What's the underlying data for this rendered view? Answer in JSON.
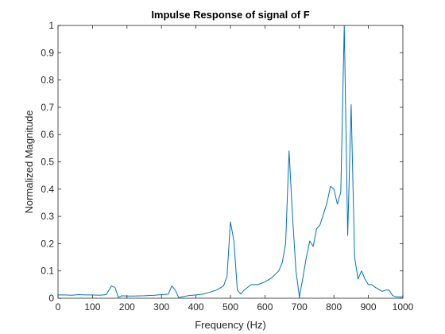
{
  "chart_data": {
    "type": "line",
    "title": "Impulse Response of signal of F",
    "xlabel": "Frequency (Hz)",
    "ylabel": "Normalized Magnitude",
    "xlim": [
      0,
      1000
    ],
    "ylim": [
      0,
      1
    ],
    "xticks": [
      "0",
      "100",
      "200",
      "300",
      "400",
      "500",
      "600",
      "700",
      "800",
      "900",
      "1000"
    ],
    "yticks": [
      "0",
      "0.1",
      "0.2",
      "0.3",
      "0.4",
      "0.5",
      "0.6",
      "0.7",
      "0.8",
      "0.9",
      "1"
    ],
    "grid": false,
    "series": [
      {
        "color": "#0072bd",
        "x": [
          0,
          20,
          40,
          60,
          80,
          100,
          120,
          140,
          155,
          165,
          175,
          185,
          200,
          220,
          250,
          280,
          300,
          320,
          330,
          340,
          350,
          360,
          380,
          400,
          420,
          440,
          460,
          480,
          490,
          500,
          510,
          520,
          530,
          540,
          560,
          580,
          600,
          620,
          640,
          650,
          660,
          670,
          680,
          690,
          700,
          710,
          720,
          730,
          740,
          750,
          760,
          770,
          780,
          790,
          800,
          810,
          820,
          830,
          840,
          850,
          860,
          870,
          880,
          890,
          900,
          910,
          920,
          940,
          950,
          960,
          970,
          980,
          990,
          1000
        ],
        "values": [
          0.012,
          0.012,
          0.011,
          0.013,
          0.012,
          0.012,
          0.011,
          0.013,
          0.045,
          0.04,
          0.003,
          0.009,
          0.008,
          0.008,
          0.009,
          0.011,
          0.013,
          0.015,
          0.045,
          0.03,
          0.002,
          0.005,
          0.01,
          0.012,
          0.015,
          0.022,
          0.03,
          0.045,
          0.08,
          0.28,
          0.21,
          0.03,
          0.015,
          0.03,
          0.05,
          0.05,
          0.06,
          0.075,
          0.1,
          0.13,
          0.2,
          0.54,
          0.3,
          0.1,
          0.005,
          0.075,
          0.15,
          0.21,
          0.19,
          0.255,
          0.27,
          0.31,
          0.35,
          0.41,
          0.4,
          0.345,
          0.39,
          1.0,
          0.23,
          0.71,
          0.15,
          0.07,
          0.1,
          0.07,
          0.05,
          0.05,
          0.04,
          0.025,
          0.03,
          0.03,
          0.01,
          0.005,
          0.005,
          0.005
        ]
      }
    ]
  }
}
